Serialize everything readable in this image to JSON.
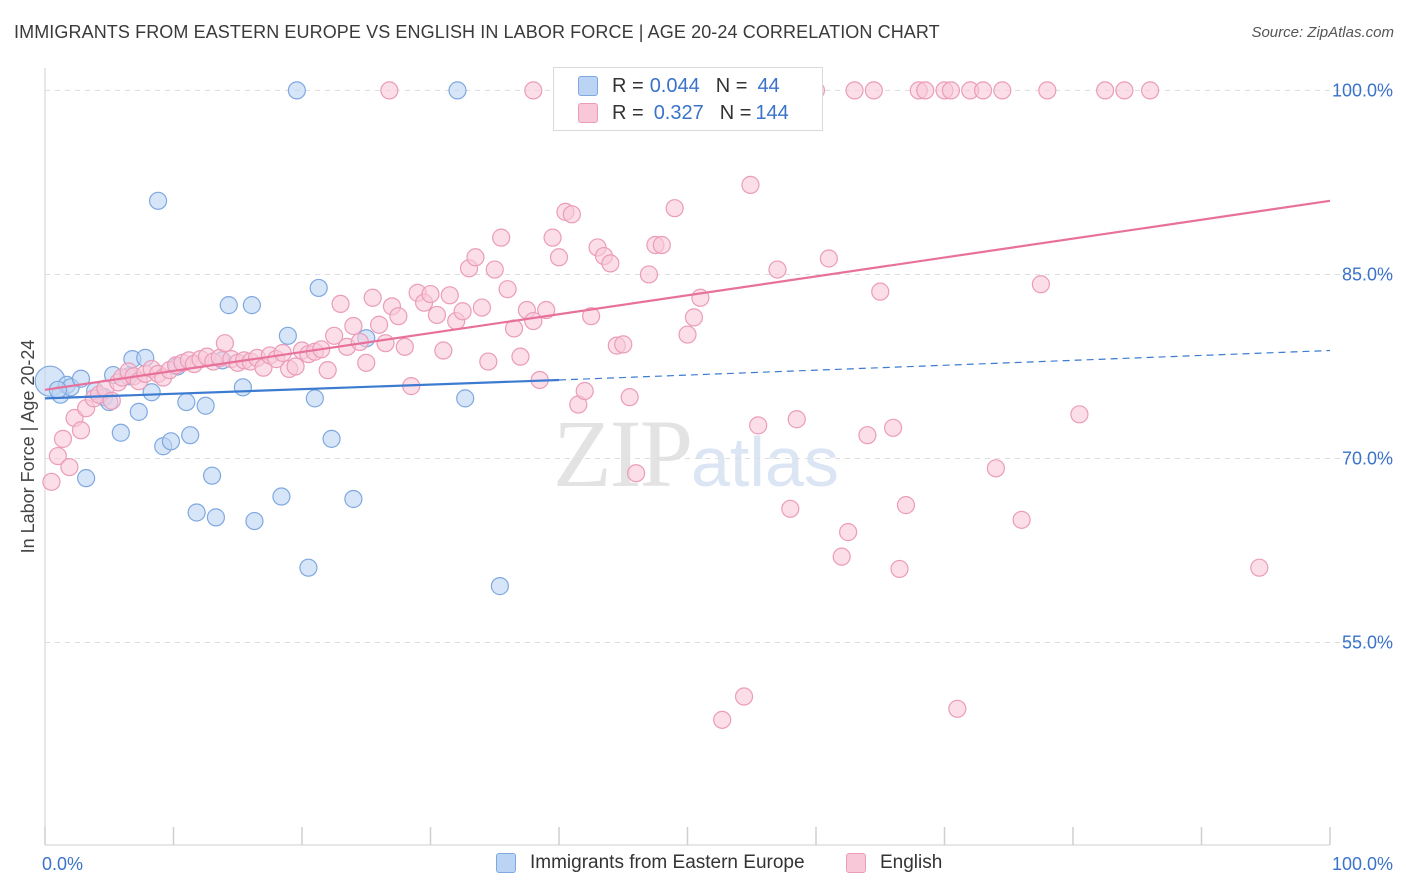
{
  "title": "IMMIGRANTS FROM EASTERN EUROPE VS ENGLISH IN LABOR FORCE | AGE 20-24 CORRELATION CHART",
  "source": "Source: ZipAtlas.com",
  "watermark": {
    "zip": "ZIP",
    "atlas": "atlas"
  },
  "legend_top": [
    {
      "r_label": "R = ",
      "r_value": "0.044",
      "n_label": "N = ",
      "n_value": "44"
    },
    {
      "r_label": "R = ",
      "r_value": "0.327",
      "n_label": "N = ",
      "n_value": "144"
    }
  ],
  "legend_bottom": [
    {
      "label": "Immigrants from Eastern Europe"
    },
    {
      "label": "English"
    }
  ],
  "colors": {
    "blue_fill": "#bcd4f3",
    "blue_stroke": "#7fa8e0",
    "blue_line": "#3d7bd1",
    "pink_fill": "#f8c8d8",
    "pink_stroke": "#eb9cb8",
    "pink_line": "#e8719b",
    "tick_text": "#3a73c9",
    "grid": "#dddddd"
  },
  "chart_data": {
    "type": "scatter",
    "title": "IMMIGRANTS FROM EASTERN EUROPE VS ENGLISH IN LABOR FORCE | AGE 20-24 CORRELATION CHART",
    "xlabel": "",
    "ylabel": "In Labor Force | Age 20-24",
    "xlim": [
      0,
      100
    ],
    "ylim": [
      38.5,
      101.5
    ],
    "x_tick_labels": [
      "0.0%",
      "100.0%"
    ],
    "y_ticks": [
      {
        "value": 100,
        "label": "100.0%"
      },
      {
        "value": 85,
        "label": "85.0%"
      },
      {
        "value": 70,
        "label": "70.0%"
      },
      {
        "value": 55,
        "label": "55.0%"
      }
    ],
    "grid": true,
    "legend_position": "top-center",
    "series": [
      {
        "name": "Immigrants from Eastern Europe",
        "color": "#bcd4f3",
        "trend": {
          "x": [
            0,
            40,
            100
          ],
          "y": [
            74.9,
            76.4,
            78.8
          ],
          "solid_until": 40
        },
        "points": [
          [
            0.4,
            76.3
          ],
          [
            1.2,
            75.2
          ],
          [
            1.7,
            76.0
          ],
          [
            2.0,
            75.8
          ],
          [
            2.8,
            76.5
          ],
          [
            3.2,
            68.4
          ],
          [
            3.9,
            75.5
          ],
          [
            4.6,
            75.0
          ],
          [
            5.0,
            74.6
          ],
          [
            5.3,
            76.8
          ],
          [
            5.9,
            72.1
          ],
          [
            6.5,
            76.7
          ],
          [
            6.8,
            78.1
          ],
          [
            7.3,
            73.8
          ],
          [
            7.8,
            78.2
          ],
          [
            8.3,
            75.4
          ],
          [
            8.8,
            91.0
          ],
          [
            9.2,
            71.0
          ],
          [
            9.8,
            71.4
          ],
          [
            10.3,
            77.5
          ],
          [
            11.0,
            74.6
          ],
          [
            11.3,
            71.9
          ],
          [
            11.8,
            65.6
          ],
          [
            12.5,
            74.3
          ],
          [
            13.0,
            68.6
          ],
          [
            13.3,
            65.2
          ],
          [
            13.8,
            78.0
          ],
          [
            14.3,
            82.5
          ],
          [
            15.4,
            75.8
          ],
          [
            16.1,
            82.5
          ],
          [
            16.3,
            64.9
          ],
          [
            18.4,
            66.9
          ],
          [
            18.9,
            80.0
          ],
          [
            19.6,
            100.0
          ],
          [
            20.5,
            61.1
          ],
          [
            21.0,
            74.9
          ],
          [
            21.3,
            83.9
          ],
          [
            22.3,
            71.6
          ],
          [
            24.0,
            66.7
          ],
          [
            25.0,
            79.8
          ],
          [
            32.1,
            100.0
          ],
          [
            32.7,
            74.9
          ],
          [
            35.4,
            59.6
          ],
          [
            1.0,
            75.6
          ]
        ]
      },
      {
        "name": "English",
        "color": "#f8c8d8",
        "trend": {
          "x": [
            0,
            100
          ],
          "y": [
            75.6,
            91.0
          ]
        },
        "points": [
          [
            0.5,
            68.1
          ],
          [
            1.0,
            70.2
          ],
          [
            1.4,
            71.6
          ],
          [
            1.9,
            69.3
          ],
          [
            2.3,
            73.3
          ],
          [
            2.8,
            72.3
          ],
          [
            3.2,
            74.1
          ],
          [
            3.8,
            74.9
          ],
          [
            4.2,
            75.2
          ],
          [
            4.7,
            75.7
          ],
          [
            5.2,
            74.7
          ],
          [
            5.7,
            76.2
          ],
          [
            6.0,
            76.6
          ],
          [
            6.5,
            77.1
          ],
          [
            6.9,
            76.7
          ],
          [
            7.3,
            76.3
          ],
          [
            7.8,
            76.9
          ],
          [
            8.3,
            77.3
          ],
          [
            8.8,
            76.9
          ],
          [
            9.2,
            76.6
          ],
          [
            9.7,
            77.2
          ],
          [
            10.2,
            77.6
          ],
          [
            10.7,
            77.8
          ],
          [
            11.2,
            78.0
          ],
          [
            11.6,
            77.7
          ],
          [
            12.1,
            78.1
          ],
          [
            12.6,
            78.3
          ],
          [
            13.1,
            77.9
          ],
          [
            13.6,
            78.2
          ],
          [
            14.0,
            79.4
          ],
          [
            14.5,
            78.1
          ],
          [
            15.0,
            77.8
          ],
          [
            15.5,
            78.0
          ],
          [
            16.0,
            77.9
          ],
          [
            16.5,
            78.2
          ],
          [
            17.0,
            77.4
          ],
          [
            17.5,
            78.4
          ],
          [
            18.0,
            78.1
          ],
          [
            18.5,
            78.6
          ],
          [
            19.0,
            77.3
          ],
          [
            19.5,
            77.5
          ],
          [
            20.0,
            78.8
          ],
          [
            20.5,
            78.5
          ],
          [
            21.0,
            78.7
          ],
          [
            21.5,
            78.9
          ],
          [
            22.0,
            77.2
          ],
          [
            22.5,
            80.0
          ],
          [
            23.0,
            82.6
          ],
          [
            23.5,
            79.1
          ],
          [
            24.0,
            80.8
          ],
          [
            24.5,
            79.5
          ],
          [
            25.0,
            77.8
          ],
          [
            25.5,
            83.1
          ],
          [
            26.0,
            80.9
          ],
          [
            26.5,
            79.4
          ],
          [
            27.0,
            82.4
          ],
          [
            27.5,
            81.6
          ],
          [
            28.0,
            79.1
          ],
          [
            28.5,
            75.9
          ],
          [
            29.0,
            83.5
          ],
          [
            29.5,
            82.7
          ],
          [
            30.0,
            83.4
          ],
          [
            30.5,
            81.7
          ],
          [
            31.0,
            78.8
          ],
          [
            31.5,
            83.3
          ],
          [
            32.0,
            81.2
          ],
          [
            32.5,
            82.0
          ],
          [
            33.0,
            85.5
          ],
          [
            33.5,
            86.4
          ],
          [
            34.0,
            82.3
          ],
          [
            34.5,
            77.9
          ],
          [
            35.0,
            85.4
          ],
          [
            35.5,
            88.0
          ],
          [
            36.0,
            83.8
          ],
          [
            36.5,
            80.6
          ],
          [
            37.0,
            78.3
          ],
          [
            37.5,
            82.1
          ],
          [
            38.0,
            81.2
          ],
          [
            38.5,
            76.4
          ],
          [
            39.0,
            82.1
          ],
          [
            39.5,
            88.0
          ],
          [
            40.0,
            86.4
          ],
          [
            40.5,
            90.1
          ],
          [
            41.0,
            89.9
          ],
          [
            41.5,
            74.4
          ],
          [
            42.0,
            75.5
          ],
          [
            42.5,
            81.6
          ],
          [
            43.0,
            87.2
          ],
          [
            43.5,
            86.5
          ],
          [
            44.0,
            85.9
          ],
          [
            44.5,
            79.2
          ],
          [
            45.0,
            79.3
          ],
          [
            45.5,
            75.0
          ],
          [
            46.0,
            68.8
          ],
          [
            47.0,
            85.0
          ],
          [
            47.5,
            87.4
          ],
          [
            48.0,
            87.4
          ],
          [
            49.0,
            90.4
          ],
          [
            50.0,
            80.1
          ],
          [
            50.5,
            81.5
          ],
          [
            51.0,
            83.1
          ],
          [
            54.0,
            100.0
          ],
          [
            54.4,
            50.6
          ],
          [
            54.9,
            92.3
          ],
          [
            55.5,
            72.7
          ],
          [
            56.0,
            100.0
          ],
          [
            56.5,
            100.0
          ],
          [
            57.0,
            85.4
          ],
          [
            58.0,
            65.9
          ],
          [
            58.5,
            73.2
          ],
          [
            59.0,
            100.0
          ],
          [
            60.0,
            100.0
          ],
          [
            61.0,
            86.3
          ],
          [
            62.0,
            62.0
          ],
          [
            62.5,
            64.0
          ],
          [
            63.0,
            100.0
          ],
          [
            64.0,
            71.9
          ],
          [
            64.5,
            100.0
          ],
          [
            65.0,
            83.6
          ],
          [
            66.0,
            72.5
          ],
          [
            66.5,
            61.0
          ],
          [
            67.0,
            66.2
          ],
          [
            68.0,
            100.0
          ],
          [
            68.5,
            100.0
          ],
          [
            70.0,
            100.0
          ],
          [
            70.5,
            100.0
          ],
          [
            71.0,
            49.6
          ],
          [
            72.0,
            100.0
          ],
          [
            73.0,
            100.0
          ],
          [
            74.0,
            69.2
          ],
          [
            76.0,
            65.0
          ],
          [
            77.5,
            84.2
          ],
          [
            78.0,
            100.0
          ],
          [
            80.5,
            73.6
          ],
          [
            82.5,
            100.0
          ],
          [
            84.0,
            100.0
          ],
          [
            86.0,
            100.0
          ],
          [
            94.5,
            61.1
          ],
          [
            52.7,
            48.7
          ],
          [
            26.8,
            100.0
          ],
          [
            38.0,
            100.0
          ],
          [
            74.5,
            100.0
          ]
        ]
      }
    ]
  }
}
